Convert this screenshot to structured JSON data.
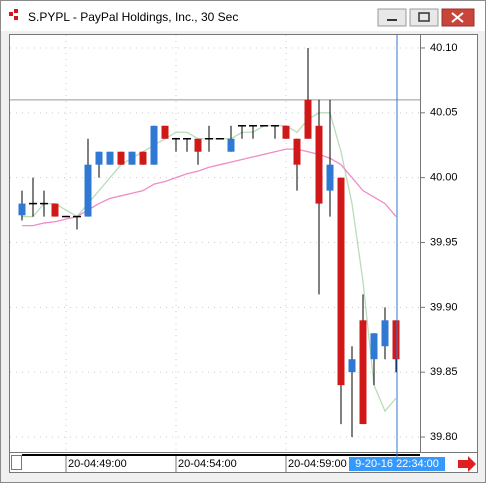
{
  "chart_data": {
    "type": "candlestick",
    "title": "S.PYPL - PayPal Holdings, Inc., 30 Sec",
    "categories": [
      null,
      null,
      null,
      null,
      "20-04:49:00",
      null,
      null,
      null,
      null,
      null,
      null,
      null,
      null,
      null,
      "20-04:54:00",
      null,
      null,
      null,
      null,
      null,
      null,
      null,
      null,
      null,
      "20-04:59:00",
      null,
      null,
      null,
      null,
      null,
      null,
      null,
      null,
      null,
      null
    ],
    "open": [
      39.971,
      39.98,
      39.98,
      39.98,
      39.97,
      39.97,
      39.97,
      40.01,
      40.01,
      40.02,
      40.01,
      40.02,
      40.01,
      40.04,
      40.03,
      40.03,
      40.03,
      40.03,
      40.03,
      40.02,
      40.04,
      40.04,
      40.04,
      40.04,
      40.04,
      40.03,
      40.06,
      40.04,
      39.99,
      40.0,
      39.85,
      39.89,
      39.86,
      39.87,
      39.89
    ],
    "high": [
      39.99,
      40.0,
      39.99,
      39.98,
      39.97,
      39.97,
      40.03,
      40.02,
      40.02,
      40.02,
      40.02,
      40.02,
      40.04,
      40.04,
      40.03,
      40.03,
      40.03,
      40.04,
      40.03,
      40.04,
      40.04,
      40.04,
      40.04,
      40.04,
      40.04,
      40.03,
      40.1,
      40.06,
      40.06,
      40.0,
      39.87,
      39.91,
      39.88,
      39.9,
      39.89
    ],
    "low": [
      39.967,
      39.97,
      39.97,
      39.97,
      39.97,
      39.96,
      39.97,
      40.0,
      40.01,
      40.01,
      40.01,
      40.01,
      40.01,
      40.03,
      40.02,
      40.02,
      40.01,
      40.02,
      40.03,
      40.02,
      40.03,
      40.03,
      40.04,
      40.03,
      40.03,
      39.99,
      40.03,
      39.91,
      39.97,
      39.81,
      39.8,
      39.81,
      39.84,
      39.86,
      39.85
    ],
    "close": [
      39.98,
      39.98,
      39.98,
      39.97,
      39.97,
      39.97,
      40.01,
      40.02,
      40.02,
      40.01,
      40.02,
      40.01,
      40.04,
      40.03,
      40.03,
      40.03,
      40.02,
      40.03,
      40.03,
      40.03,
      40.04,
      40.04,
      40.04,
      40.04,
      40.03,
      40.01,
      40.03,
      39.98,
      40.01,
      39.84,
      39.86,
      39.81,
      39.88,
      39.89,
      39.86
    ],
    "up_color": "#2f78d4",
    "down_color": "#d01818",
    "doji_color": "#000000",
    "overlays": [
      {
        "color": "#b9dcb9",
        "values": [
          39.97,
          39.97,
          39.98,
          39.98,
          39.975,
          39.97,
          39.98,
          39.99,
          40.0,
          40.01,
          40.015,
          40.02,
          40.025,
          40.03,
          40.035,
          40.035,
          40.03,
          40.03,
          40.03,
          40.03,
          40.035,
          40.035,
          40.04,
          40.04,
          40.04,
          40.035,
          40.045,
          40.05,
          40.05,
          40.02,
          39.98,
          39.92,
          39.84,
          39.82,
          39.83
        ]
      },
      {
        "color": "#f08cc8",
        "values": [
          39.963,
          39.963,
          39.965,
          39.966,
          39.968,
          39.97,
          39.975,
          39.98,
          39.984,
          39.986,
          39.988,
          39.99,
          39.995,
          39.997,
          40.0,
          40.003,
          40.005,
          40.008,
          40.01,
          40.012,
          40.014,
          40.016,
          40.018,
          40.02,
          40.022,
          40.022,
          40.02,
          40.018,
          40.015,
          40.01,
          40.0,
          39.99,
          39.985,
          39.98,
          39.97
        ]
      }
    ],
    "hline": 40.06,
    "crosshair_label": "9-20-16 22:34:00",
    "ylim": [
      39.79,
      40.11
    ],
    "yticks": [
      {
        "value": 39.8,
        "label": "39.80"
      },
      39.85,
      {
        "value": 39.9,
        "label": "39.90"
      },
      39.95,
      {
        "value": 40.0,
        "label": "40.00"
      },
      40.05,
      {
        "value": 40.1,
        "label": "40.10"
      }
    ],
    "grid": true
  }
}
